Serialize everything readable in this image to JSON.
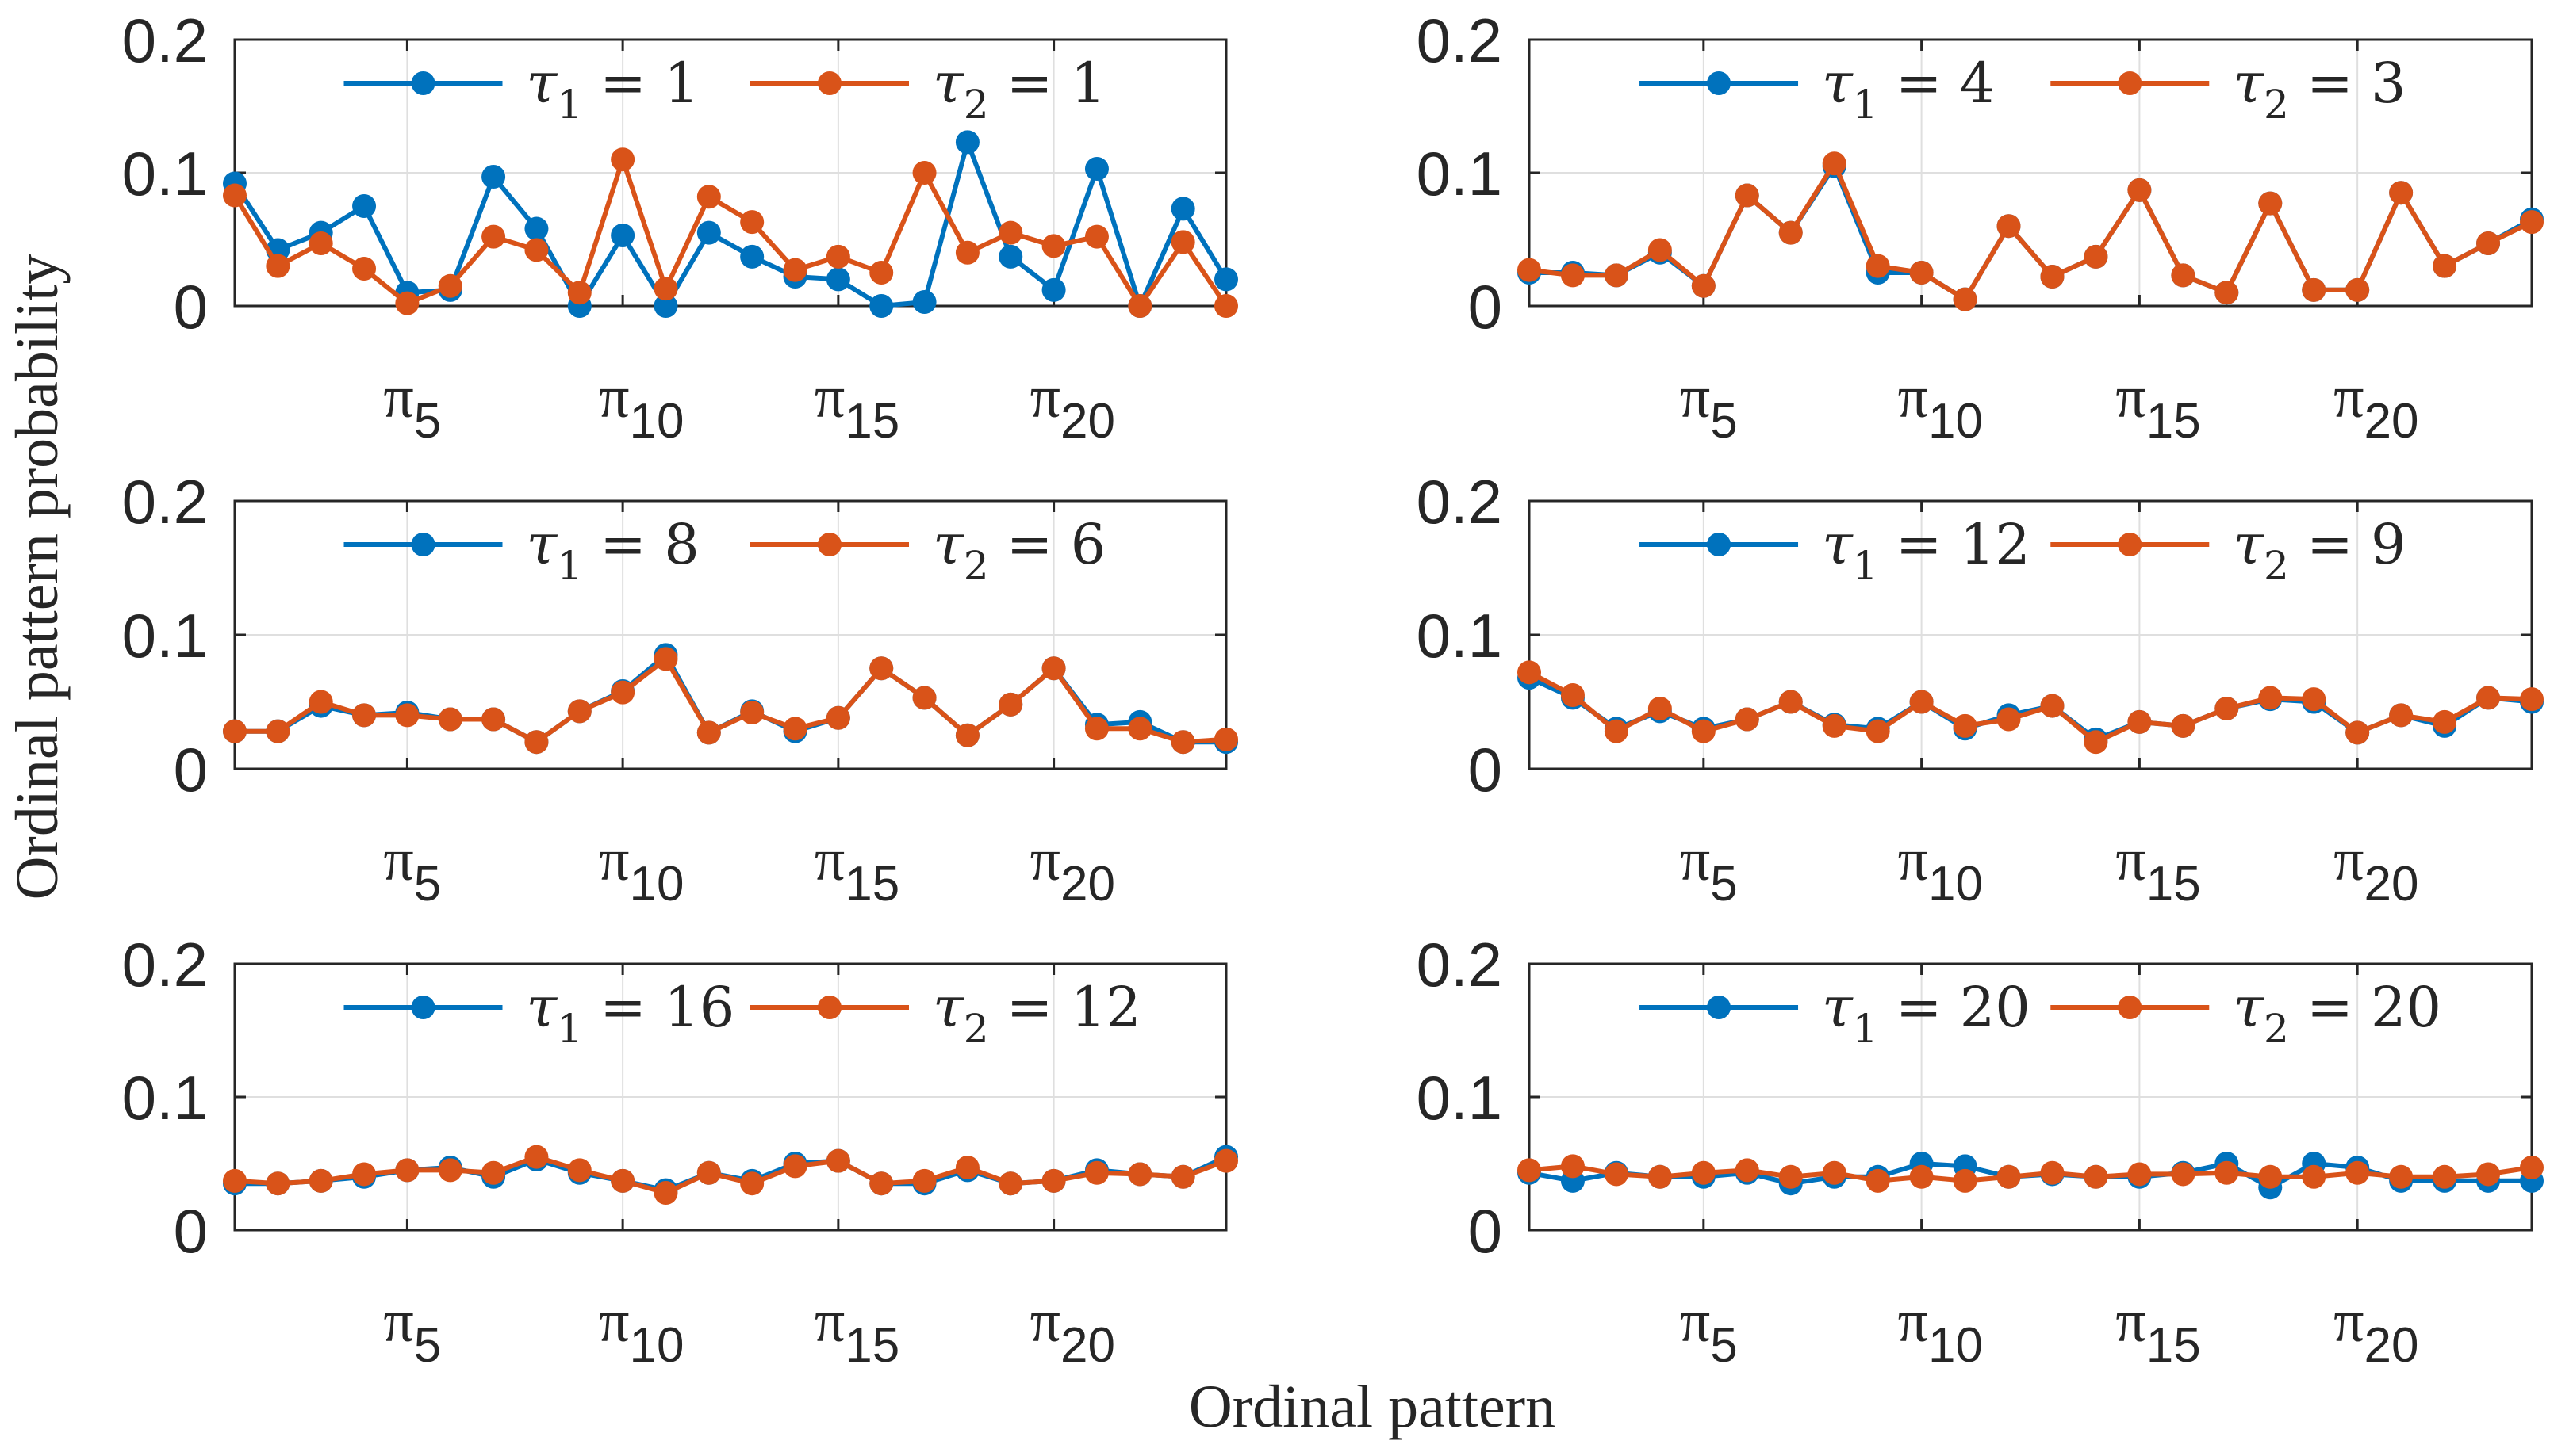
{
  "figure": {
    "ylabel": "Ordinal pattern probability",
    "xlabel": "Ordinal pattern"
  },
  "colors": {
    "series1": "#0072BD",
    "series2": "#D95319",
    "grid": "#dfdfdf",
    "axis": "#262626"
  },
  "chart_data": [
    {
      "type": "line",
      "ylim": [
        0,
        0.2
      ],
      "yticks": [
        {
          "value": 0,
          "label": "0"
        },
        {
          "value": 0.1,
          "label": "0.1"
        },
        {
          "value": 0.2,
          "label": "0.2"
        }
      ],
      "xlim": [
        1,
        24
      ],
      "xticks": [
        {
          "value": 5,
          "symbol": "π",
          "sub": "5"
        },
        {
          "value": 10,
          "symbol": "π",
          "sub": "10"
        },
        {
          "value": 15,
          "symbol": "π",
          "sub": "15"
        },
        {
          "value": 20,
          "symbol": "π",
          "sub": "20"
        }
      ],
      "grid": true,
      "legend_position": "top",
      "x": [
        1,
        2,
        3,
        4,
        5,
        6,
        7,
        8,
        9,
        10,
        11,
        12,
        13,
        14,
        15,
        16,
        17,
        18,
        19,
        20,
        21,
        22,
        23,
        24
      ],
      "series": [
        {
          "name": "τ₁ = 1",
          "legend": {
            "sym": "τ",
            "sub": "1",
            "val": "1"
          },
          "values": [
            0.092,
            0.042,
            0.055,
            0.075,
            0.01,
            0.012,
            0.097,
            0.058,
            0.0,
            0.053,
            0.0,
            0.055,
            0.037,
            0.022,
            0.02,
            0.0,
            0.003,
            0.123,
            0.037,
            0.012,
            0.103,
            0.0,
            0.073,
            0.02
          ]
        },
        {
          "name": "τ₂ = 1",
          "legend": {
            "sym": "τ",
            "sub": "2",
            "val": "1"
          },
          "values": [
            0.083,
            0.03,
            0.047,
            0.028,
            0.002,
            0.015,
            0.052,
            0.042,
            0.01,
            0.11,
            0.013,
            0.082,
            0.063,
            0.027,
            0.037,
            0.025,
            0.1,
            0.04,
            0.055,
            0.045,
            0.052,
            0.0,
            0.048,
            0.0
          ]
        }
      ]
    },
    {
      "type": "line",
      "ylim": [
        0,
        0.2
      ],
      "yticks": [
        {
          "value": 0,
          "label": "0"
        },
        {
          "value": 0.1,
          "label": "0.1"
        },
        {
          "value": 0.2,
          "label": "0.2"
        }
      ],
      "xlim": [
        1,
        24
      ],
      "xticks": [
        {
          "value": 5,
          "symbol": "π",
          "sub": "5"
        },
        {
          "value": 10,
          "symbol": "π",
          "sub": "10"
        },
        {
          "value": 15,
          "symbol": "π",
          "sub": "15"
        },
        {
          "value": 20,
          "symbol": "π",
          "sub": "20"
        }
      ],
      "grid": true,
      "legend_position": "top",
      "x": [
        1,
        2,
        3,
        4,
        5,
        6,
        7,
        8,
        9,
        10,
        11,
        12,
        13,
        14,
        15,
        16,
        17,
        18,
        19,
        20,
        21,
        22,
        23,
        24
      ],
      "series": [
        {
          "name": "τ₁ = 4",
          "legend": {
            "sym": "τ",
            "sub": "1",
            "val": "4"
          },
          "values": [
            0.025,
            0.025,
            0.023,
            0.04,
            0.015,
            0.083,
            0.055,
            0.105,
            0.025,
            0.025,
            0.005,
            0.06,
            0.022,
            0.037,
            0.087,
            0.023,
            0.01,
            0.077,
            0.012,
            0.012,
            0.085,
            0.03,
            0.047,
            0.065
          ]
        },
        {
          "name": "τ₂ = 3",
          "legend": {
            "sym": "τ",
            "sub": "2",
            "val": "3"
          },
          "values": [
            0.027,
            0.023,
            0.023,
            0.042,
            0.015,
            0.083,
            0.055,
            0.107,
            0.03,
            0.025,
            0.005,
            0.06,
            0.022,
            0.037,
            0.087,
            0.023,
            0.01,
            0.077,
            0.012,
            0.012,
            0.085,
            0.03,
            0.047,
            0.063
          ]
        }
      ]
    },
    {
      "type": "line",
      "ylim": [
        0,
        0.2
      ],
      "yticks": [
        {
          "value": 0,
          "label": "0"
        },
        {
          "value": 0.1,
          "label": "0.1"
        },
        {
          "value": 0.2,
          "label": "0.2"
        }
      ],
      "xlim": [
        1,
        24
      ],
      "xticks": [
        {
          "value": 5,
          "symbol": "π",
          "sub": "5"
        },
        {
          "value": 10,
          "symbol": "π",
          "sub": "10"
        },
        {
          "value": 15,
          "symbol": "π",
          "sub": "15"
        },
        {
          "value": 20,
          "symbol": "π",
          "sub": "20"
        }
      ],
      "grid": true,
      "legend_position": "top",
      "x": [
        1,
        2,
        3,
        4,
        5,
        6,
        7,
        8,
        9,
        10,
        11,
        12,
        13,
        14,
        15,
        16,
        17,
        18,
        19,
        20,
        21,
        22,
        23,
        24
      ],
      "series": [
        {
          "name": "τ₁ = 8",
          "legend": {
            "sym": "τ",
            "sub": "1",
            "val": "8"
          },
          "values": [
            0.028,
            0.028,
            0.047,
            0.04,
            0.042,
            0.037,
            0.037,
            0.02,
            0.043,
            0.058,
            0.085,
            0.027,
            0.043,
            0.028,
            0.038,
            0.075,
            0.053,
            0.025,
            0.048,
            0.075,
            0.033,
            0.035,
            0.02,
            0.02
          ]
        },
        {
          "name": "τ₂ = 6",
          "legend": {
            "sym": "τ",
            "sub": "2",
            "val": "6"
          },
          "values": [
            0.028,
            0.028,
            0.05,
            0.04,
            0.04,
            0.037,
            0.037,
            0.02,
            0.043,
            0.057,
            0.082,
            0.027,
            0.042,
            0.03,
            0.038,
            0.075,
            0.053,
            0.025,
            0.048,
            0.075,
            0.03,
            0.03,
            0.02,
            0.022
          ]
        }
      ]
    },
    {
      "type": "line",
      "ylim": [
        0,
        0.2
      ],
      "yticks": [
        {
          "value": 0,
          "label": "0"
        },
        {
          "value": 0.1,
          "label": "0.1"
        },
        {
          "value": 0.2,
          "label": "0.2"
        }
      ],
      "xlim": [
        1,
        24
      ],
      "xticks": [
        {
          "value": 5,
          "symbol": "π",
          "sub": "5"
        },
        {
          "value": 10,
          "symbol": "π",
          "sub": "10"
        },
        {
          "value": 15,
          "symbol": "π",
          "sub": "15"
        },
        {
          "value": 20,
          "symbol": "π",
          "sub": "20"
        }
      ],
      "grid": true,
      "legend_position": "top",
      "x": [
        1,
        2,
        3,
        4,
        5,
        6,
        7,
        8,
        9,
        10,
        11,
        12,
        13,
        14,
        15,
        16,
        17,
        18,
        19,
        20,
        21,
        22,
        23,
        24
      ],
      "series": [
        {
          "name": "τ₁ = 12",
          "legend": {
            "sym": "τ",
            "sub": "1",
            "val": "12"
          },
          "values": [
            0.068,
            0.053,
            0.03,
            0.043,
            0.03,
            0.037,
            0.05,
            0.033,
            0.03,
            0.05,
            0.03,
            0.04,
            0.047,
            0.022,
            0.035,
            0.032,
            0.045,
            0.052,
            0.05,
            0.027,
            0.04,
            0.032,
            0.053,
            0.05
          ]
        },
        {
          "name": "τ₂ = 9",
          "legend": {
            "sym": "τ",
            "sub": "2",
            "val": "9"
          },
          "values": [
            0.072,
            0.055,
            0.028,
            0.045,
            0.028,
            0.037,
            0.05,
            0.032,
            0.028,
            0.05,
            0.032,
            0.037,
            0.047,
            0.02,
            0.035,
            0.032,
            0.045,
            0.053,
            0.052,
            0.027,
            0.04,
            0.035,
            0.053,
            0.052
          ]
        }
      ]
    },
    {
      "type": "line",
      "ylim": [
        0,
        0.2
      ],
      "yticks": [
        {
          "value": 0,
          "label": "0"
        },
        {
          "value": 0.1,
          "label": "0.1"
        },
        {
          "value": 0.2,
          "label": "0.2"
        }
      ],
      "xlim": [
        1,
        24
      ],
      "xticks": [
        {
          "value": 5,
          "symbol": "π",
          "sub": "5"
        },
        {
          "value": 10,
          "symbol": "π",
          "sub": "10"
        },
        {
          "value": 15,
          "symbol": "π",
          "sub": "15"
        },
        {
          "value": 20,
          "symbol": "π",
          "sub": "20"
        }
      ],
      "grid": true,
      "legend_position": "top",
      "x": [
        1,
        2,
        3,
        4,
        5,
        6,
        7,
        8,
        9,
        10,
        11,
        12,
        13,
        14,
        15,
        16,
        17,
        18,
        19,
        20,
        21,
        22,
        23,
        24
      ],
      "series": [
        {
          "name": "τ₁ = 16",
          "legend": {
            "sym": "τ",
            "sub": "1",
            "val": "16"
          },
          "values": [
            0.035,
            0.035,
            0.037,
            0.04,
            0.045,
            0.047,
            0.04,
            0.053,
            0.043,
            0.037,
            0.03,
            0.043,
            0.037,
            0.05,
            0.052,
            0.035,
            0.035,
            0.045,
            0.035,
            0.037,
            0.045,
            0.042,
            0.04,
            0.055
          ]
        },
        {
          "name": "τ₂ = 12",
          "legend": {
            "sym": "τ",
            "sub": "2",
            "val": "12"
          },
          "values": [
            0.037,
            0.035,
            0.037,
            0.042,
            0.045,
            0.045,
            0.043,
            0.055,
            0.045,
            0.037,
            0.028,
            0.043,
            0.035,
            0.048,
            0.052,
            0.035,
            0.037,
            0.047,
            0.035,
            0.037,
            0.043,
            0.042,
            0.04,
            0.052
          ]
        }
      ]
    },
    {
      "type": "line",
      "ylim": [
        0,
        0.2
      ],
      "yticks": [
        {
          "value": 0,
          "label": "0"
        },
        {
          "value": 0.1,
          "label": "0.1"
        },
        {
          "value": 0.2,
          "label": "0.2"
        }
      ],
      "xlim": [
        1,
        24
      ],
      "xticks": [
        {
          "value": 5,
          "symbol": "π",
          "sub": "5"
        },
        {
          "value": 10,
          "symbol": "π",
          "sub": "10"
        },
        {
          "value": 15,
          "symbol": "π",
          "sub": "15"
        },
        {
          "value": 20,
          "symbol": "π",
          "sub": "20"
        }
      ],
      "grid": true,
      "legend_position": "top",
      "x": [
        1,
        2,
        3,
        4,
        5,
        6,
        7,
        8,
        9,
        10,
        11,
        12,
        13,
        14,
        15,
        16,
        17,
        18,
        19,
        20,
        21,
        22,
        23,
        24
      ],
      "series": [
        {
          "name": "τ₁ = 20",
          "legend": {
            "sym": "τ",
            "sub": "1",
            "val": "20"
          },
          "values": [
            0.043,
            0.037,
            0.043,
            0.04,
            0.04,
            0.043,
            0.035,
            0.04,
            0.04,
            0.05,
            0.048,
            0.04,
            0.042,
            0.04,
            0.04,
            0.043,
            0.05,
            0.032,
            0.05,
            0.047,
            0.037,
            0.037,
            0.037,
            0.037
          ]
        },
        {
          "name": "τ₂ = 20",
          "legend": {
            "sym": "τ",
            "sub": "2",
            "val": "20"
          },
          "values": [
            0.045,
            0.048,
            0.042,
            0.04,
            0.043,
            0.045,
            0.04,
            0.043,
            0.037,
            0.04,
            0.037,
            0.04,
            0.043,
            0.04,
            0.042,
            0.042,
            0.043,
            0.04,
            0.04,
            0.043,
            0.04,
            0.04,
            0.042,
            0.047
          ]
        }
      ]
    }
  ]
}
